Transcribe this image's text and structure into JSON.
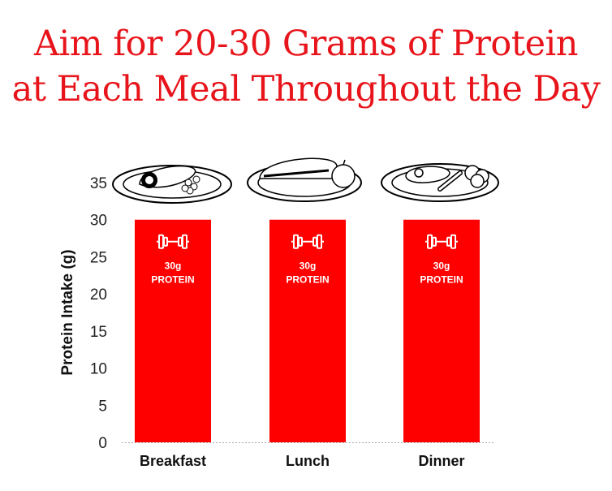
{
  "title_lines": [
    "Aim for 20-30 Grams of Protein",
    "at Each Meal Throughout the Day"
  ],
  "colors": {
    "title": "#e8141b",
    "bar": "#ff0000",
    "bar_text": "#ffffff",
    "axis_text": "#222222"
  },
  "chart_data": {
    "type": "bar",
    "categories": [
      "Breakfast",
      "Lunch",
      "Dinner"
    ],
    "values": [
      30,
      30,
      30
    ],
    "ylabel": "Protein Intake (g)",
    "xlabel": "",
    "ylim": [
      0,
      35
    ],
    "yticks": [
      0,
      5,
      10,
      15,
      20,
      25,
      30,
      35
    ],
    "grid": false,
    "bar_labels": [
      {
        "amount": "30g",
        "word": "PROTEIN",
        "icon": "dumbbell-icon"
      },
      {
        "amount": "30g",
        "word": "PROTEIN",
        "icon": "dumbbell-icon"
      },
      {
        "amount": "30g",
        "word": "PROTEIN",
        "icon": "dumbbell-icon"
      }
    ],
    "meal_icons": [
      "breakfast-plate-icon",
      "lunch-plate-icon",
      "dinner-plate-icon"
    ]
  }
}
